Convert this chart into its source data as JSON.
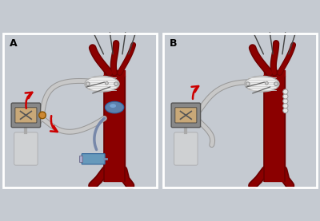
{
  "bg_color": "#c5cad1",
  "panel_A_label": "A",
  "panel_B_label": "B",
  "aorta_color": "#8b0000",
  "aorta_dark": "#5a0000",
  "aorta_edge": "#6b0000",
  "tube_outer": "#999999",
  "tube_inner": "#c8c8c8",
  "graft_color": "#eeeeee",
  "graft_stripe": "#cccccc",
  "arrow_color": "#cc0000",
  "machine_body": "#888888",
  "machine_face": "#c8a878",
  "machine_edge": "#555555",
  "balloon_color": "#5599cc",
  "balloon_edge": "#2266aa",
  "pearl_color": "#e8e8e8",
  "pearl_edge": "#999999",
  "syringe_fill": "#6699bb",
  "syringe_edge": "#336699",
  "connector_color": "#cc8833",
  "connector_edge": "#8b5500",
  "reservoir_color": "#d5d5d5",
  "reservoir_edge": "#999999",
  "instrument_color": "#444444",
  "shadow_alpha": 0.35
}
